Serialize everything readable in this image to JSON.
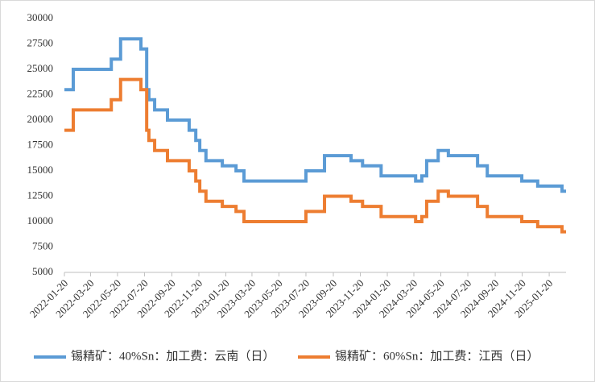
{
  "chart_data": {
    "type": "line",
    "step": "post",
    "x": [
      "2022-01-20",
      "2022-02-09",
      "2022-05-06",
      "2022-05-27",
      "2022-07-12",
      "2022-07-25",
      "2022-07-30",
      "2022-08-12",
      "2022-09-10",
      "2022-10-29",
      "2022-11-13",
      "2022-11-22",
      "2022-12-06",
      "2023-01-12",
      "2023-02-12",
      "2023-03-02",
      "2023-07-20",
      "2023-08-31",
      "2023-10-30",
      "2023-11-25",
      "2024-01-06",
      "2024-03-24",
      "2024-04-07",
      "2024-04-18",
      "2024-05-14",
      "2024-06-06",
      "2024-08-11",
      "2024-09-02",
      "2024-11-19",
      "2024-12-25",
      "2025-02-18",
      "2025-02-27"
    ],
    "series": [
      {
        "name": "锡精矿：40%Sn：加工费：云南（日）",
        "color": "#5b9bd5",
        "values": [
          23000,
          25000,
          26000,
          28000,
          27000,
          23000,
          22000,
          21000,
          20000,
          19000,
          18000,
          17000,
          16000,
          15500,
          15000,
          14000,
          15000,
          16500,
          16000,
          15500,
          14500,
          14000,
          14500,
          16000,
          17000,
          16500,
          15500,
          14500,
          14000,
          13500,
          13000,
          13000
        ]
      },
      {
        "name": "锡精矿：60%Sn：加工费：江西（日）",
        "color": "#ed7d31",
        "values": [
          19000,
          21000,
          22000,
          24000,
          23000,
          19000,
          18000,
          17000,
          16000,
          15000,
          14000,
          13000,
          12000,
          11500,
          11000,
          10000,
          11000,
          12500,
          12000,
          11500,
          10500,
          10000,
          10500,
          12000,
          13000,
          12500,
          11500,
          10500,
          10000,
          9500,
          9000,
          9000
        ]
      }
    ],
    "xlim": [
      "2022-01-20",
      "2025-02-27"
    ],
    "xticks": [
      "2022-01-20",
      "2022-03-20",
      "2022-05-20",
      "2022-07-20",
      "2022-09-20",
      "2022-11-20",
      "2023-01-20",
      "2023-03-20",
      "2023-05-20",
      "2023-07-20",
      "2023-09-20",
      "2023-11-20",
      "2024-01-20",
      "2024-03-20",
      "2024-05-20",
      "2024-07-20",
      "2024-09-20",
      "2024-11-20",
      "2025-01-20"
    ],
    "ylim": [
      5000,
      30000
    ],
    "yticks": [
      5000,
      7500,
      10000,
      12500,
      15000,
      17500,
      20000,
      22500,
      25000,
      27500,
      30000
    ],
    "legend": "bottom"
  }
}
